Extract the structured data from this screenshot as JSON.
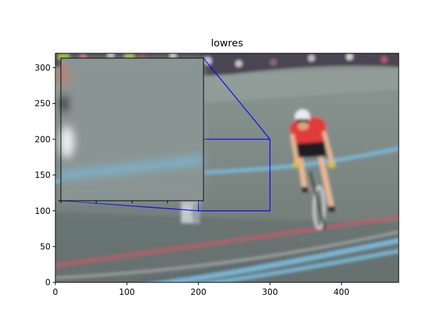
{
  "chart_data": {
    "type": "image",
    "title": "lowres",
    "xlabel": "",
    "ylabel": "",
    "xlim": [
      0,
      480
    ],
    "ylim": [
      0,
      320
    ],
    "x_ticks": [
      0,
      100,
      200,
      300,
      400
    ],
    "y_ticks": [
      0,
      50,
      100,
      150,
      200,
      250,
      300
    ],
    "zoom_region": {
      "x": [
        200,
        300
      ],
      "y": [
        100,
        200
      ]
    },
    "inset_axes": true,
    "colors": {
      "indicator": "#0000ff",
      "track": "#6f7a78",
      "track_light": "#8f9a96",
      "crowd": "#4a4452",
      "blue_line": "#79b8d6",
      "red_line": "#c0546a",
      "jersey": "#e23a3a"
    }
  }
}
